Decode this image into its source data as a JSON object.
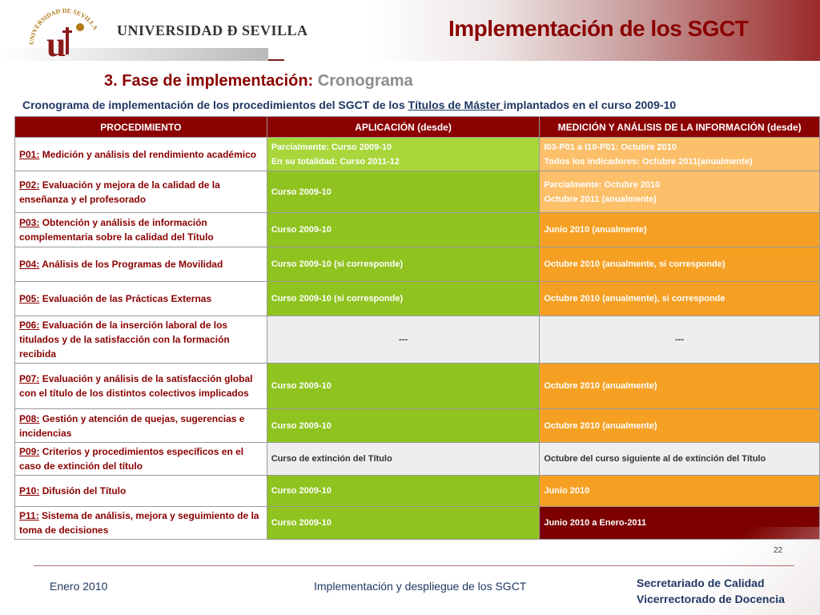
{
  "header": {
    "university": "UNIVERSIDAD Ð SEVILLA",
    "seal_text": "UNIVERSIDAD DE SEVILLA",
    "title": "Implementación de los SGCT",
    "brand_color": "#8b0000"
  },
  "section": {
    "number_title": "3. Fase de implementación:",
    "accent": "Cronograma"
  },
  "subtitle": {
    "before": "Cronograma de implementación de los procedimientos del SGCT de los ",
    "underlined": "Títulos de Máster ",
    "after": "implantados en el curso 2009-10"
  },
  "table": {
    "headers": [
      "PROCEDIMIENTO",
      "APLICACIÓN  (desde)",
      "MEDICIÓN Y ANÁLISIS DE LA INFORMACIÓN (desde)"
    ],
    "rows": [
      {
        "code": "P01:",
        "name": " Medición y análisis del rendimiento académico",
        "app": [
          "Parcialmente: Curso 2009-10",
          "En su totalidad: Curso 2011-12"
        ],
        "med": [
          "I03-P01 a I10-P01: Octubre 2010",
          "Todos los indicadores: Octubre 2011(anualmente)"
        ]
      },
      {
        "code": "P02:",
        "name": " Evaluación y mejora de la calidad de la enseñanza y el profesorado",
        "app": [
          "Curso 2009-10"
        ],
        "med": [
          "Parcialmente: Octubre 2010",
          "Octubre 2011 (anualmente)"
        ]
      },
      {
        "code": "P03:",
        "name": " Obtención y análisis de información complementaria sobre la calidad del Título",
        "app": [
          "Curso 2009-10"
        ],
        "med": [
          "Junio 2010 (anualmente)"
        ]
      },
      {
        "code": "P04:",
        "name": " Análisis de los Programas de Movilidad",
        "app": [
          "Curso 2009-10  (si corresponde)"
        ],
        "med": [
          "Octubre  2010 (anualmente, si corresponde)"
        ]
      },
      {
        "code": "P05:",
        "name": " Evaluación de las Prácticas Externas",
        "app": [
          "Curso 2009-10 (si corresponde)"
        ],
        "med": [
          "Octubre 2010 (anualmente), si corresponde"
        ]
      },
      {
        "code": "P06:",
        "name": " Evaluación de  la inserción laboral de los titulados y de la satisfacción con la formación recibida",
        "app": [
          "---"
        ],
        "med": [
          "---"
        ]
      },
      {
        "code": "P07:",
        "name": " Evaluación y análisis de la satisfacción global con el título de los distintos colectivos implicados",
        "app": [
          "Curso 2009-10"
        ],
        "med": [
          "Octubre 2010 (anualmente)"
        ]
      },
      {
        "code": "P08:",
        "name": " Gestión y atención de quejas, sugerencias e incidencias",
        "app": [
          "Curso 2009-10"
        ],
        "med": [
          "Octubre 2010 (anualmente)"
        ]
      },
      {
        "code": "P09:",
        "name": " Criterios y procedimientos específicos en el caso de extinción del título",
        "app": [
          "Curso de extinción del Título"
        ],
        "med": [
          "Octubre del curso siguiente al de extinción del Título"
        ]
      },
      {
        "code": "P10:",
        "name": " Difusión del Título",
        "app": [
          "Curso 2009-10"
        ],
        "med": [
          "Junio 2010"
        ]
      },
      {
        "code": "P11:",
        "name": " Sistema de análisis, mejora y seguimiento de la toma de decisiones",
        "app": [
          "Curso 2009-10"
        ],
        "med": [
          "Junio 2010 a Enero-2011"
        ]
      }
    ]
  },
  "footer": {
    "page": "22",
    "date": "Enero 2010",
    "center": "Implementación y despliegue de los SGCT",
    "right_line1": "Secretariado de Calidad",
    "right_line2": "Vicerrectorado de Docencia"
  }
}
